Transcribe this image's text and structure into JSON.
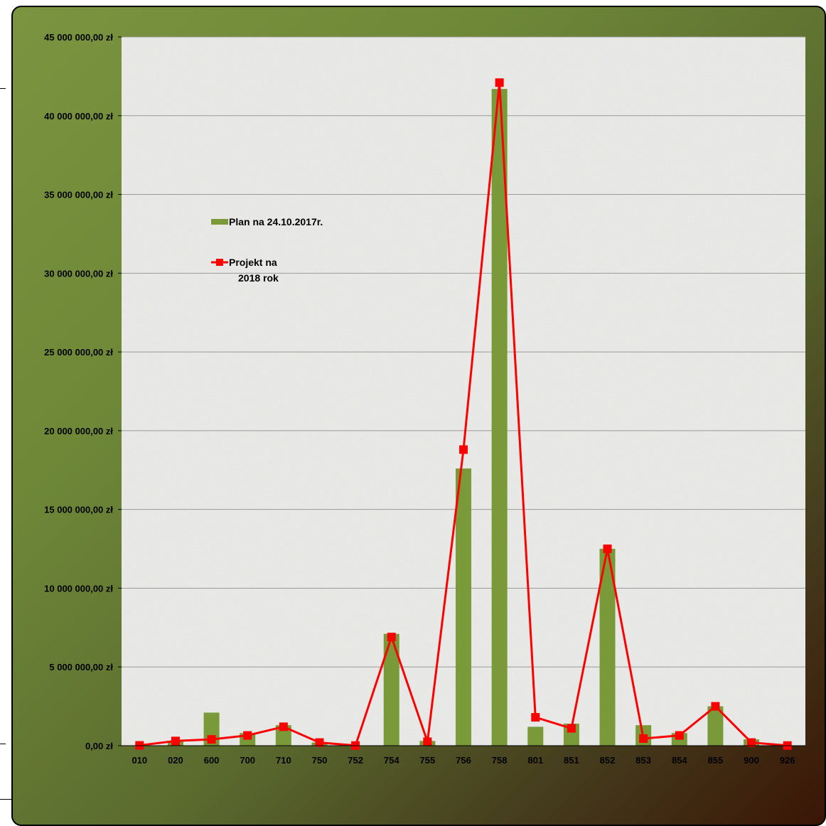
{
  "chart_data": {
    "type": "bar",
    "title": "",
    "xlabel": "",
    "ylabel": "",
    "ylim": [
      0,
      45000000
    ],
    "yticks": [
      "0,00 zł",
      "5 000 000,00 zł",
      "10 000 000,00 zł",
      "15 000 000,00 zł",
      "20 000 000,00 zł",
      "25 000 000,00 zł",
      "30 000 000,00 zł",
      "35 000 000,00 zł",
      "40 000 000,00 zł",
      "45 000 000,00 zł"
    ],
    "ytick_values": [
      0,
      5000000,
      10000000,
      15000000,
      20000000,
      25000000,
      30000000,
      35000000,
      40000000,
      45000000
    ],
    "categories": [
      "010",
      "020",
      "600",
      "700",
      "710",
      "750",
      "752",
      "754",
      "755",
      "756",
      "758",
      "801",
      "851",
      "852",
      "853",
      "854",
      "855",
      "900",
      "926"
    ],
    "grid": true,
    "legend_position": "upper-left",
    "series": [
      {
        "name": "Plan na 24.10.2017r.",
        "type": "bar",
        "color": "#7a9a3a",
        "values": [
          20000,
          300000,
          2100000,
          800000,
          1300000,
          200000,
          10000,
          7100000,
          300000,
          17600000,
          41700000,
          1200000,
          1400000,
          12500000,
          1300000,
          800000,
          2500000,
          400000,
          20000
        ]
      },
      {
        "name": "Projekt na 2018 rok",
        "legend_lines": [
          "Projekt na",
          "2018 rok"
        ],
        "type": "line",
        "color": "#ff0000",
        "values": [
          20000,
          300000,
          400000,
          650000,
          1200000,
          200000,
          10000,
          6900000,
          250000,
          18800000,
          42100000,
          1800000,
          1100000,
          12500000,
          450000,
          650000,
          2500000,
          200000,
          10000
        ]
      }
    ]
  }
}
